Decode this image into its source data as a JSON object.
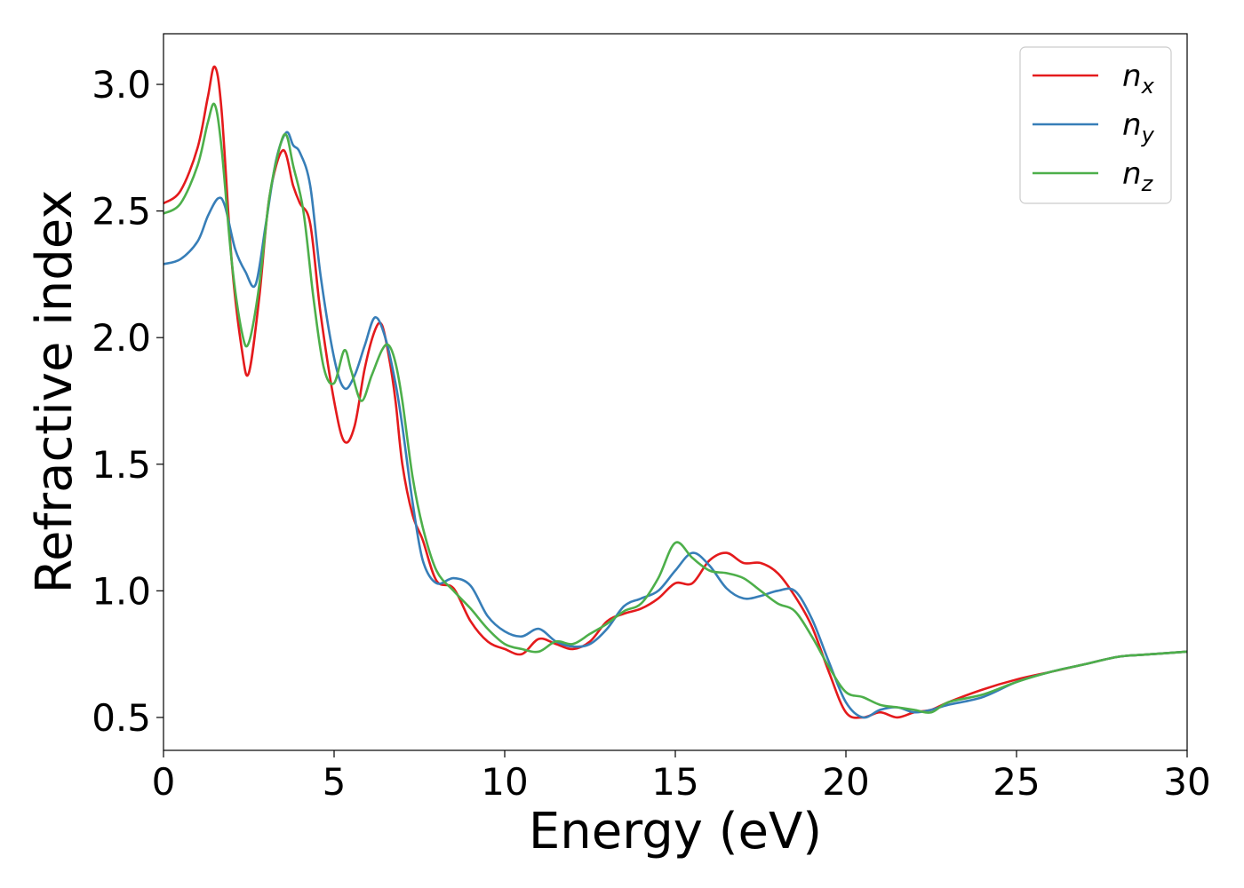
{
  "chart_data": {
    "type": "line",
    "title": "",
    "xlabel": "Energy (eV)",
    "ylabel": "Refractive index",
    "xlim": [
      0,
      30
    ],
    "ylim": [
      0.37,
      3.2
    ],
    "xticks": [
      0,
      5,
      10,
      15,
      20,
      25,
      30
    ],
    "xtick_labels": [
      "0",
      "5",
      "10",
      "15",
      "20",
      "25",
      "30"
    ],
    "yticks": [
      0.5,
      1.0,
      1.5,
      2.0,
      2.5,
      3.0
    ],
    "ytick_labels": [
      "0.5",
      "1.0",
      "1.5",
      "2.0",
      "2.5",
      "3.0"
    ],
    "grid": false,
    "legend_position": "top-right",
    "series": [
      {
        "name": "n",
        "subscript": "x",
        "color": "#e41a1c",
        "x": [
          0,
          0.5,
          1.0,
          1.3,
          1.5,
          1.7,
          2.0,
          2.3,
          2.5,
          2.8,
          3.1,
          3.5,
          3.8,
          4.0,
          4.3,
          4.6,
          5.0,
          5.3,
          5.6,
          5.9,
          6.2,
          6.4,
          6.6,
          6.8,
          7.0,
          7.3,
          7.6,
          8.0,
          8.5,
          9.0,
          9.5,
          10.0,
          10.5,
          11.0,
          11.5,
          12.0,
          12.5,
          13.0,
          13.5,
          14.0,
          14.5,
          15.0,
          15.5,
          16.0,
          16.5,
          17.0,
          17.5,
          18.0,
          18.5,
          19.0,
          19.5,
          20.0,
          20.5,
          21.0,
          21.5,
          22.0,
          22.5,
          23.0,
          24.0,
          25.0,
          26.0,
          27.0,
          28.0,
          29.0,
          30.0
        ],
        "values": [
          2.53,
          2.58,
          2.75,
          2.95,
          3.07,
          2.9,
          2.3,
          1.95,
          1.86,
          2.15,
          2.55,
          2.74,
          2.6,
          2.53,
          2.45,
          2.1,
          1.75,
          1.59,
          1.65,
          1.88,
          2.03,
          2.05,
          1.93,
          1.75,
          1.5,
          1.3,
          1.2,
          1.04,
          1.01,
          0.88,
          0.8,
          0.77,
          0.75,
          0.81,
          0.79,
          0.77,
          0.8,
          0.88,
          0.91,
          0.93,
          0.97,
          1.03,
          1.03,
          1.12,
          1.15,
          1.11,
          1.11,
          1.07,
          0.98,
          0.86,
          0.68,
          0.52,
          0.5,
          0.52,
          0.5,
          0.52,
          0.53,
          0.56,
          0.61,
          0.65,
          0.68,
          0.71,
          0.74,
          0.75,
          0.76
        ]
      },
      {
        "name": "n",
        "subscript": "y",
        "color": "#377eb8",
        "x": [
          0,
          0.5,
          1.0,
          1.3,
          1.6,
          1.8,
          2.1,
          2.4,
          2.7,
          3.0,
          3.3,
          3.6,
          3.8,
          4.0,
          4.3,
          4.6,
          5.0,
          5.3,
          5.6,
          5.9,
          6.2,
          6.5,
          6.8,
          7.0,
          7.3,
          7.6,
          8.0,
          8.5,
          9.0,
          9.5,
          10.0,
          10.5,
          11.0,
          11.5,
          12.0,
          12.5,
          13.0,
          13.5,
          14.0,
          14.5,
          15.0,
          15.5,
          16.0,
          16.5,
          17.0,
          17.5,
          18.0,
          18.5,
          19.0,
          19.5,
          20.0,
          20.5,
          21.0,
          21.5,
          22.0,
          22.5,
          23.0,
          24.0,
          25.0,
          26.0,
          27.0,
          28.0,
          29.0,
          30.0
        ],
        "values": [
          2.29,
          2.31,
          2.38,
          2.48,
          2.55,
          2.52,
          2.35,
          2.26,
          2.21,
          2.45,
          2.7,
          2.81,
          2.76,
          2.73,
          2.6,
          2.25,
          1.92,
          1.8,
          1.85,
          1.97,
          2.08,
          2.0,
          1.82,
          1.65,
          1.35,
          1.12,
          1.03,
          1.05,
          1.02,
          0.9,
          0.84,
          0.82,
          0.85,
          0.8,
          0.78,
          0.79,
          0.85,
          0.94,
          0.97,
          1.0,
          1.08,
          1.15,
          1.1,
          1.01,
          0.97,
          0.98,
          1.0,
          1.0,
          0.89,
          0.72,
          0.56,
          0.5,
          0.53,
          0.54,
          0.52,
          0.53,
          0.55,
          0.58,
          0.64,
          0.68,
          0.71,
          0.74,
          0.75,
          0.76
        ]
      },
      {
        "name": "n",
        "subscript": "z",
        "color": "#4daf4a",
        "x": [
          0,
          0.5,
          1.0,
          1.3,
          1.5,
          1.7,
          2.0,
          2.3,
          2.5,
          2.8,
          3.1,
          3.4,
          3.6,
          3.8,
          4.1,
          4.4,
          4.7,
          5.0,
          5.3,
          5.5,
          5.8,
          6.1,
          6.4,
          6.6,
          6.8,
          7.0,
          7.3,
          7.6,
          8.0,
          8.5,
          9.0,
          9.5,
          10.0,
          10.5,
          11.0,
          11.5,
          12.0,
          12.5,
          13.0,
          13.5,
          14.0,
          14.5,
          15.0,
          15.5,
          16.0,
          16.5,
          17.0,
          17.5,
          18.0,
          18.5,
          19.0,
          19.5,
          20.0,
          20.5,
          21.0,
          21.5,
          22.0,
          22.5,
          23.0,
          24.0,
          25.0,
          26.0,
          27.0,
          28.0,
          29.0,
          30.0
        ],
        "values": [
          2.49,
          2.53,
          2.68,
          2.85,
          2.92,
          2.75,
          2.3,
          2.02,
          1.98,
          2.2,
          2.55,
          2.75,
          2.8,
          2.68,
          2.5,
          2.15,
          1.88,
          1.82,
          1.95,
          1.87,
          1.75,
          1.85,
          1.95,
          1.97,
          1.9,
          1.75,
          1.45,
          1.25,
          1.08,
          1.0,
          0.93,
          0.85,
          0.79,
          0.77,
          0.76,
          0.8,
          0.79,
          0.83,
          0.87,
          0.92,
          0.95,
          1.05,
          1.19,
          1.13,
          1.08,
          1.07,
          1.05,
          1.0,
          0.95,
          0.92,
          0.82,
          0.7,
          0.6,
          0.58,
          0.55,
          0.54,
          0.53,
          0.52,
          0.56,
          0.59,
          0.64,
          0.68,
          0.71,
          0.74,
          0.75,
          0.76
        ]
      }
    ]
  }
}
